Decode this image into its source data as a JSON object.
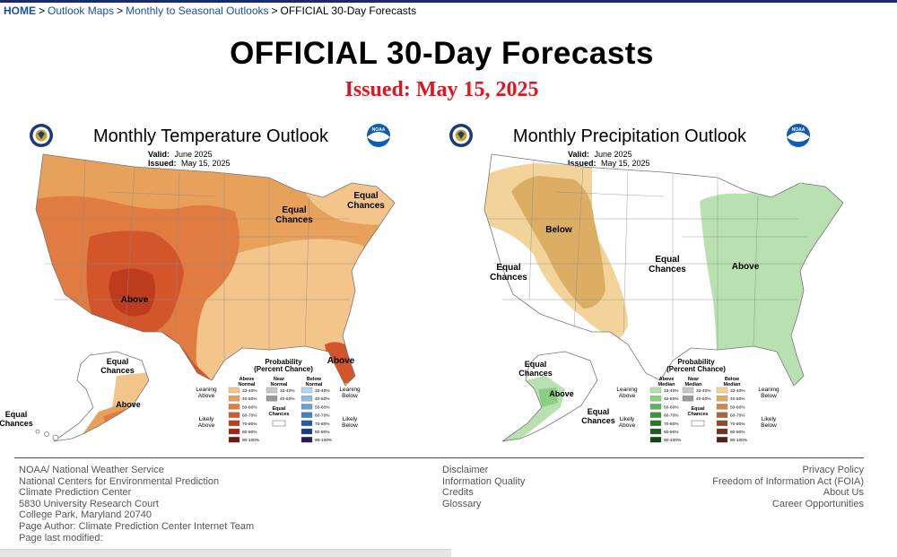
{
  "breadcrumb": {
    "home": "HOME",
    "separator": ">",
    "item1": "Outlook Maps",
    "item2": "Monthly to Seasonal Outlooks",
    "current": "OFFICIAL 30-Day Forecasts"
  },
  "page": {
    "title": "OFFICIAL 30-Day Forecasts",
    "issued": "Issued: May 15, 2025"
  },
  "temperature_map": {
    "title": "Monthly Temperature Outlook",
    "valid_label": "Valid:",
    "valid_value": "June 2025",
    "issued_label": "Issued:",
    "issued_value": "May 15, 2025",
    "labels": {
      "equal_chances_ne": "Equal\nChances",
      "equal_chances_gl": "Equal\nChances",
      "above_sw": "Above",
      "above_fl": "Above",
      "equal_chances_ak": "Equal\nChances",
      "above_ak": "Above",
      "equal_chances_hi": "Equal\nChances"
    },
    "legend": {
      "heading": "Probability\n(Percent Chance)",
      "col_above": "Above\nNormal",
      "col_near": "Near\nNormal",
      "col_below": "Below\nNormal",
      "leaning_above": "Leaning\nAbove",
      "likely_above": "Likely\nAbove",
      "leaning_below": "Leaning\nBelow",
      "likely_below": "Likely\nBelow",
      "equal_chances": "Equal\nChances",
      "ranges": [
        "33-40%",
        "40-50%",
        "50-60%",
        "60-70%",
        "70-80%",
        "80-90%",
        "90-100%"
      ],
      "near_ranges": [
        "33-40%",
        "40-50%"
      ],
      "above_colors": [
        "#f3c58a",
        "#e8a15a",
        "#e07c42",
        "#d2552b",
        "#bd3c1e",
        "#9c2816",
        "#6e1a10"
      ],
      "near_colors": [
        "#c8c8c8",
        "#9a9a9a"
      ],
      "below_colors": [
        "#b7d4ea",
        "#8fbbdf",
        "#6aa1d3",
        "#3f82c0",
        "#1f5ea3",
        "#1a3a7e",
        "#2a1a55"
      ]
    }
  },
  "precipitation_map": {
    "title": "Monthly Precipitation Outlook",
    "valid_label": "Valid:",
    "valid_value": "June 2025",
    "issued_label": "Issued:",
    "issued_value": "May 15, 2025",
    "labels": {
      "below": "Below",
      "equal_chances_w": "Equal\nChances",
      "equal_chances_c": "Equal\nChances",
      "above_e": "Above",
      "equal_chances_ak": "Equal\nChances",
      "above_ak": "Above",
      "equal_chances_ak2": "Equal\nChances"
    },
    "legend": {
      "heading": "Probability\n(Percent Chance)",
      "col_above": "Above\nMedian",
      "col_near": "Near\nMedian",
      "col_below": "Below\nMedian",
      "leaning_above": "Leaning\nAbove",
      "likely_above": "Likely\nAbove",
      "leaning_below": "Leaning\nBelow",
      "likely_below": "Likely\nBelow",
      "equal_chances": "Equal\nChances",
      "ranges": [
        "33-40%",
        "40-50%",
        "50-60%",
        "60-70%",
        "70-80%",
        "80-90%",
        "90-100%"
      ],
      "near_ranges": [
        "33-40%",
        "40-50%"
      ],
      "above_colors": [
        "#b8e0b0",
        "#8ccd84",
        "#5fb35a",
        "#3a963a",
        "#257a28",
        "#1a5f1d",
        "#124615"
      ],
      "near_colors": [
        "#c8c8c8",
        "#9a9a9a"
      ],
      "below_colors": [
        "#f2d49a",
        "#dcae63",
        "#c88a45",
        "#a8653a",
        "#8a4a2e",
        "#6a3524",
        "#4a241a"
      ]
    }
  },
  "footer": {
    "left": [
      "NOAA/ National Weather Service",
      "National Centers for Environmental Prediction",
      "Climate Prediction Center",
      "5830 University Research Court",
      "College Park, Maryland 20740",
      "Page Author: Climate Prediction Center Internet Team",
      "Page last modified:"
    ],
    "middle": [
      "Disclaimer",
      "Information Quality",
      "Credits",
      "Glossary"
    ],
    "right": [
      "Privacy Policy",
      "Freedom of Information Act (FOIA)",
      "About Us",
      "Career Opportunities"
    ]
  },
  "colors": {
    "temp_above_lean": "#f3c58a",
    "temp_above_40": "#e8a15a",
    "temp_above_50": "#e07c42",
    "temp_above_60": "#d2552b",
    "temp_above_70": "#bd3c1e",
    "precip_below_lean": "#f2d49a",
    "precip_below_40": "#dcae63",
    "precip_above_lean": "#b8e0b0"
  }
}
